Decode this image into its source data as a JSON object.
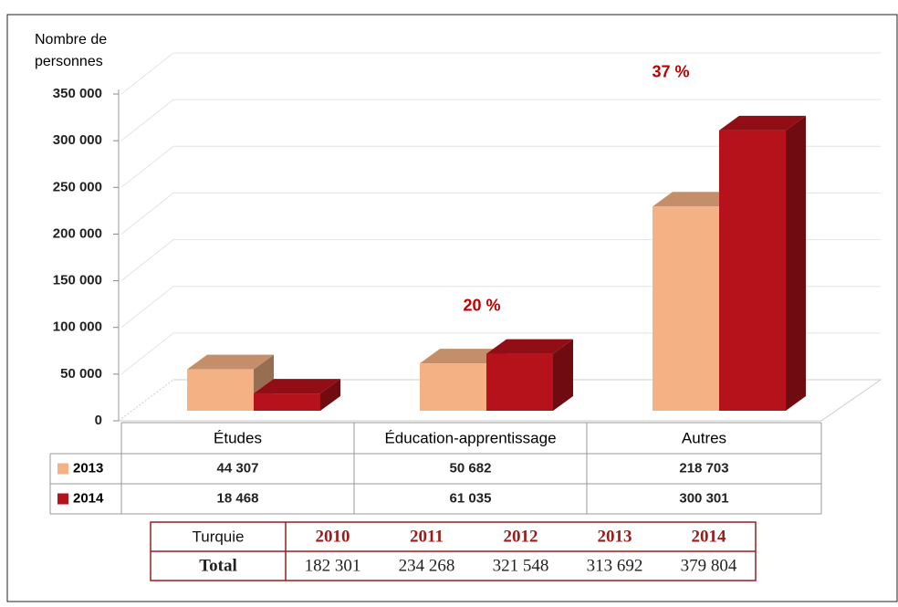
{
  "chart_data": {
    "type": "bar3d",
    "ylabel": [
      "Nombre de",
      "personnes"
    ],
    "categories": [
      "Études",
      "Éducation-apprentissage",
      "Autres"
    ],
    "series": [
      {
        "name": "2013",
        "color": "#f4b183",
        "values": [
          44307,
          50682,
          218703
        ],
        "value_labels": [
          "44 307",
          "50 682",
          "218 703"
        ]
      },
      {
        "name": "2014",
        "color": "#b5121b",
        "values": [
          18468,
          61035,
          300301
        ],
        "value_labels": [
          "18 468",
          "61 035",
          "300 301"
        ]
      }
    ],
    "ylim": [
      0,
      350000
    ],
    "yticks": [
      0,
      {
        "value": 50000,
        "label": "50 000"
      },
      {
        "value": 100000,
        "label": "100 000"
      },
      {
        "value": 150000,
        "label": "150 000"
      },
      {
        "value": 200000,
        "label": "200 000"
      },
      {
        "value": 250000,
        "label": "250 000"
      },
      {
        "value": 300000,
        "label": "300 000"
      },
      {
        "value": 350000,
        "label": "350 000"
      }
    ],
    "grid": true,
    "annotations": [
      {
        "text": "20 %",
        "category": 1
      },
      {
        "text": "37 %",
        "category": 2
      }
    ]
  },
  "table": {
    "header": [
      "Turquie",
      "2010",
      "2011",
      "2012",
      "2013",
      "2014"
    ],
    "rows": [
      [
        "Total",
        "182 301",
        "234 268",
        "321 548",
        "313 692",
        "379 804"
      ]
    ]
  }
}
